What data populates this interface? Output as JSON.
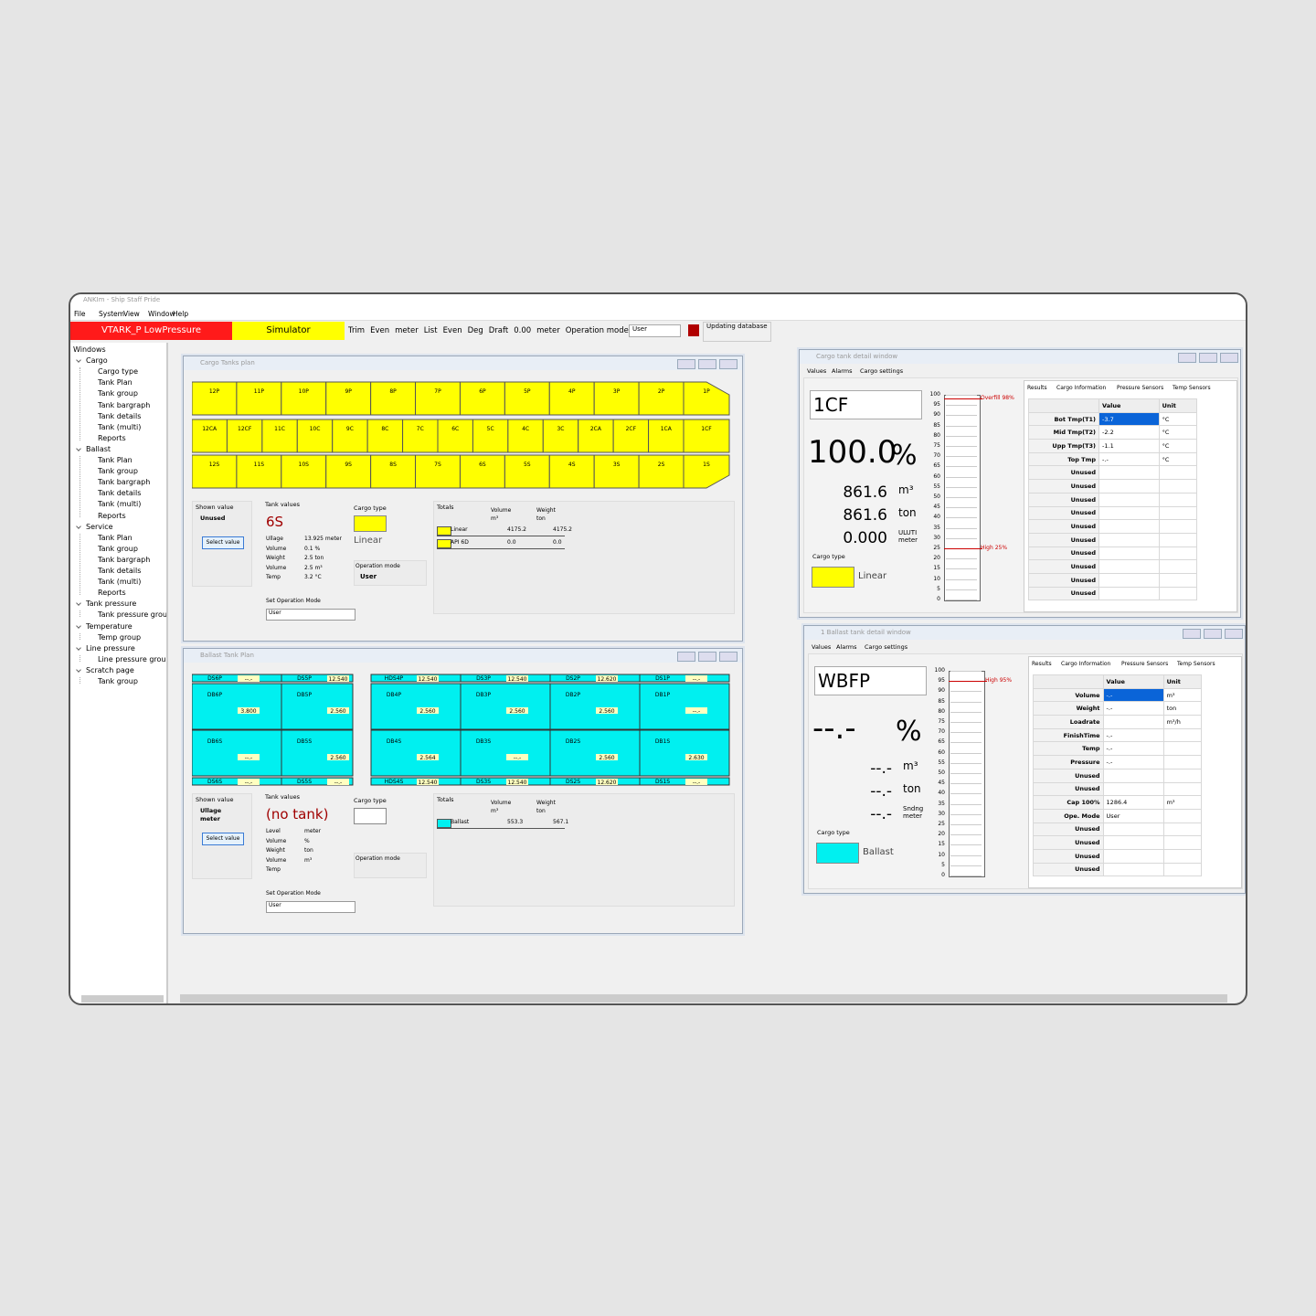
{
  "window": {
    "title": "ANKIm - Ship Staff Pride",
    "menu": [
      "File",
      "System",
      "View",
      "Window",
      "Help"
    ]
  },
  "toolbar": {
    "alarm": "VTARK_P LowPressure",
    "mode": "Simulator",
    "items": [
      "Trim",
      "Even",
      "meter",
      "List",
      "Even",
      "Deg",
      "Draft",
      "0.00",
      "meter",
      "Operation mode"
    ],
    "operation_mode": "User",
    "status": "Updating database"
  },
  "tree": {
    "title": "Windows",
    "groups": [
      {
        "label": "Cargo",
        "children": [
          "Cargo type",
          "Tank Plan",
          "Tank group",
          "Tank bargraph",
          "Tank details",
          "Tank (multi)",
          "Reports"
        ]
      },
      {
        "label": "Ballast",
        "children": [
          "Tank Plan",
          "Tank group",
          "Tank bargraph",
          "Tank details",
          "Tank (multi)",
          "Reports"
        ]
      },
      {
        "label": "Service",
        "children": [
          "Tank Plan",
          "Tank group",
          "Tank bargraph",
          "Tank details",
          "Tank (multi)",
          "Reports"
        ]
      },
      {
        "label": "Tank pressure",
        "children": [
          "Tank pressure group"
        ]
      },
      {
        "label": "Temperature",
        "children": [
          "Temp group"
        ]
      },
      {
        "label": "Line pressure",
        "children": [
          "Line pressure group"
        ]
      },
      {
        "label": "Scratch page",
        "children": [
          "Tank group"
        ]
      }
    ]
  },
  "cargo_plan": {
    "title": "Cargo Tanks plan",
    "color": "#ffff00",
    "rows": [
      [
        "12P",
        "11P",
        "10P",
        "9P",
        "8P",
        "7P",
        "6P",
        "5P",
        "4P",
        "3P",
        "2P",
        "1P"
      ],
      [
        "12CA",
        "12CF",
        "11C",
        "10C",
        "9C",
        "8C",
        "7C",
        "6C",
        "5C",
        "4C",
        "3C",
        "2CA",
        "2CF",
        "1CA",
        "1CF"
      ],
      [
        "12S",
        "11S",
        "10S",
        "9S",
        "8S",
        "7S",
        "6S",
        "5S",
        "4S",
        "3S",
        "2S",
        "1S"
      ]
    ],
    "shown_value": {
      "label": "Shown value",
      "values": [
        "Unused"
      ],
      "button": "Select value"
    },
    "tank_values": {
      "label": "Tank values",
      "tank": "6S",
      "rows": [
        [
          "Ullage",
          "13.925 meter"
        ],
        [
          "Volume",
          "0.1 %"
        ],
        [
          "Weight",
          "2.5 ton"
        ],
        [
          "Volume",
          "2.5 m³"
        ],
        [
          "Temp",
          "3.2 °C"
        ]
      ]
    },
    "cargo_type": {
      "label": "Cargo type",
      "value": "Linear"
    },
    "operation_mode": {
      "label": "Operation mode",
      "value": "User"
    },
    "set_mode": {
      "label": "Set Operation Mode",
      "value": "User"
    },
    "totals": {
      "label": "Totals",
      "headers": [
        [
          "Volume",
          "m³"
        ],
        [
          "Weight",
          "ton"
        ]
      ],
      "rows": [
        [
          "Linear",
          "4175.2",
          "4175.2"
        ],
        [
          "API 6D",
          "0.0",
          "0.0"
        ]
      ]
    }
  },
  "ballast_plan": {
    "title": "Ballast Tank Plan",
    "color": "#00f0f0",
    "top": [
      [
        "DS6P",
        "--.-"
      ],
      [
        "DS5P",
        "12.540"
      ],
      [
        "HDS4P",
        "12.540"
      ],
      [
        "DS3P",
        "12.540"
      ],
      [
        "DS2P",
        "12.620"
      ],
      [
        "DS1P",
        "--.-"
      ]
    ],
    "port": [
      [
        "DB6P",
        "3.800"
      ],
      [
        "DB5P",
        "2.560"
      ],
      [
        "DB4P",
        "2.560"
      ],
      [
        "DB3P",
        "2.560"
      ],
      [
        "DB2P",
        "2.560"
      ],
      [
        "DB1P",
        "--.-"
      ]
    ],
    "stbd": [
      [
        "DB6S",
        "--.-"
      ],
      [
        "DB5S",
        "2.560"
      ],
      [
        "DB4S",
        "2.564"
      ],
      [
        "DB3S",
        "--.-"
      ],
      [
        "DB2S",
        "2.560"
      ],
      [
        "DB1S",
        "2.630"
      ]
    ],
    "bottom": [
      [
        "DS6S",
        "--.-"
      ],
      [
        "DS5S",
        "--.-"
      ],
      [
        "HDS4S",
        "12.540"
      ],
      [
        "DS3S",
        "12.540"
      ],
      [
        "DS2S",
        "12.620"
      ],
      [
        "DS1S",
        "--.-"
      ]
    ],
    "shown_value": {
      "label": "Shown value",
      "values": [
        "Ullage",
        "meter"
      ],
      "button": "Select value"
    },
    "tank_values": {
      "label": "Tank values",
      "tank": "(no tank)",
      "rows": [
        [
          "Level",
          "meter"
        ],
        [
          "Volume",
          "%"
        ],
        [
          "Weight",
          "ton"
        ],
        [
          "Volume",
          "m³"
        ],
        [
          "Temp"
        ]
      ]
    },
    "cargo_type": {
      "label": "Cargo type"
    },
    "operation_mode": {
      "label": "Operation mode"
    },
    "set_mode": {
      "label": "Set Operation Mode",
      "value": "User"
    },
    "totals": {
      "label": "Totals",
      "headers": [
        [
          "Volume",
          "m³"
        ],
        [
          "Weight",
          "ton"
        ]
      ],
      "rows": [
        [
          "Ballast",
          "553.3",
          "567.1"
        ]
      ]
    }
  },
  "cargo_detail": {
    "title": "Cargo tank detail window",
    "tabs": [
      "Values",
      "Alarms",
      "Cargo settings"
    ],
    "tank": "1CF",
    "percent": "100.0",
    "percent_unit": "%",
    "readings": [
      [
        "861.6",
        "m³"
      ],
      [
        "861.6",
        "ton"
      ],
      [
        "0.000",
        "ULUTI meter"
      ]
    ],
    "cargo_type_label": "Cargo type",
    "cargo_type": "Linear",
    "color": "#ffff00",
    "scale": [
      100,
      95,
      90,
      85,
      80,
      75,
      70,
      65,
      60,
      55,
      50,
      45,
      40,
      35,
      30,
      25,
      20,
      15,
      10,
      5,
      0
    ],
    "alarms": [
      {
        "label": "Overfill 98%",
        "value": 98
      },
      {
        "label": "High 25%",
        "value": 25
      }
    ],
    "right_tabs": [
      "Results",
      "Cargo Information",
      "Pressure Sensors",
      "Temp Sensors"
    ],
    "table": {
      "headers": [
        "Value",
        "Unit"
      ],
      "rows": [
        {
          "name": "Bot Tmp(T1)",
          "value": "-3.7",
          "unit": "°C"
        },
        {
          "name": "Mid Tmp(T2)",
          "value": "-2.2",
          "unit": "°C"
        },
        {
          "name": "Upp Tmp(T3)",
          "value": "-1.1",
          "unit": "°C"
        },
        {
          "name": "Top Tmp",
          "value": "-.-",
          "unit": "°C"
        },
        {
          "name": "Unused"
        },
        {
          "name": "Unused"
        },
        {
          "name": "Unused"
        },
        {
          "name": "Unused"
        },
        {
          "name": "Unused"
        },
        {
          "name": "Unused"
        },
        {
          "name": "Unused"
        },
        {
          "name": "Unused"
        },
        {
          "name": "Unused"
        },
        {
          "name": "Unused"
        }
      ]
    }
  },
  "ballast_detail": {
    "title": "1 Ballast tank detail window",
    "tabs": [
      "Values",
      "Alarms",
      "Cargo settings"
    ],
    "tank": "WBFP",
    "percent": "--.-",
    "percent_unit": "%",
    "readings": [
      [
        "--.-",
        "m³"
      ],
      [
        "--.-",
        "ton"
      ],
      [
        "--.-",
        "Sndng meter"
      ]
    ],
    "cargo_type_label": "Cargo type",
    "cargo_type": "Ballast",
    "color": "#00f0f0",
    "scale": [
      100,
      95,
      90,
      85,
      80,
      75,
      70,
      65,
      60,
      55,
      50,
      45,
      40,
      35,
      30,
      25,
      20,
      15,
      10,
      5,
      0
    ],
    "alarms": [
      {
        "label": "High 95%",
        "value": 95
      }
    ],
    "right_tabs": [
      "Results",
      "Cargo Information",
      "Pressure Sensors",
      "Temp Sensors"
    ],
    "table": {
      "headers": [
        "Value",
        "Unit"
      ],
      "rows": [
        {
          "name": "Volume",
          "value": "-.-",
          "unit": "m³"
        },
        {
          "name": "Weight",
          "value": "-.-",
          "unit": "ton"
        },
        {
          "name": "Loadrate",
          "unit": "m³/h"
        },
        {
          "name": "FinishTime",
          "value": "-.-"
        },
        {
          "name": "Temp",
          "value": "-.-"
        },
        {
          "name": "Pressure",
          "value": "-.-"
        },
        {
          "name": "Unused"
        },
        {
          "name": "Unused"
        },
        {
          "name": "Cap 100%",
          "value": "1286.4",
          "unit": "m³"
        },
        {
          "name": "Ope. Mode",
          "value": "User"
        },
        {
          "name": "Unused"
        },
        {
          "name": "Unused"
        },
        {
          "name": "Unused"
        },
        {
          "name": "Unused"
        }
      ]
    }
  }
}
